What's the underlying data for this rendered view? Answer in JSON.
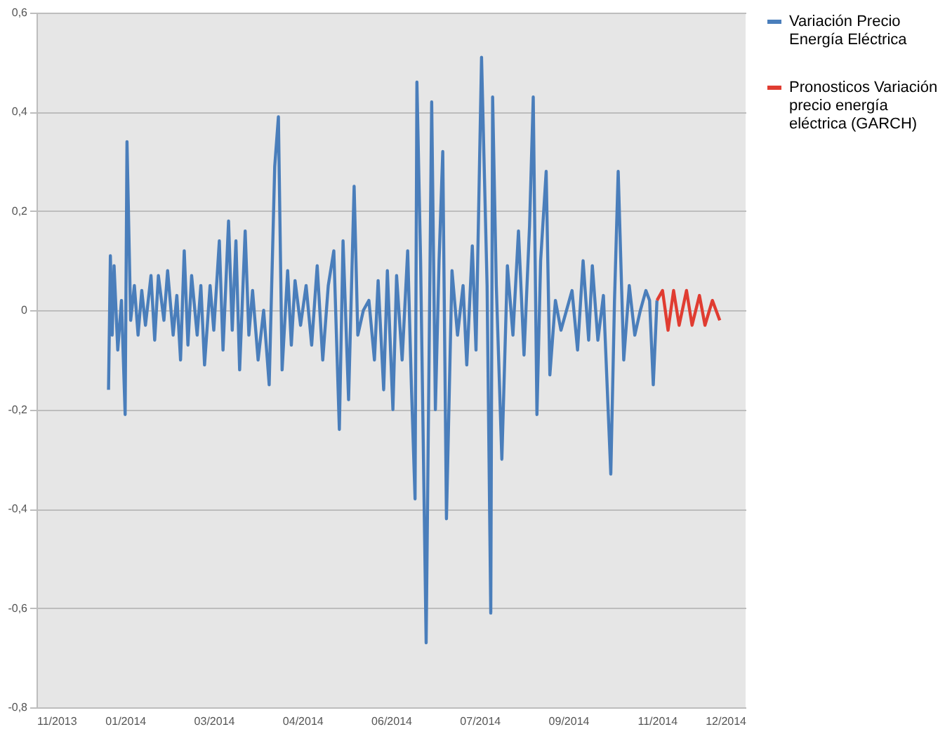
{
  "chart_data": {
    "type": "line",
    "xlim": [
      "2013-11-30",
      "2014-12-19"
    ],
    "xticks": [
      {
        "value": "2013-11-30",
        "label": "11/2013"
      },
      {
        "value": "2014-01-17",
        "label": "01/2014"
      },
      {
        "value": "2014-03-06",
        "label": "03/2014"
      },
      {
        "value": "2014-04-23",
        "label": "04/2014"
      },
      {
        "value": "2014-06-10",
        "label": "06/2014"
      },
      {
        "value": "2014-07-28",
        "label": "07/2014"
      },
      {
        "value": "2014-09-14",
        "label": "09/2014"
      },
      {
        "value": "2014-11-01",
        "label": "11/2014"
      },
      {
        "value": "2014-12-19",
        "label": "12/2014"
      }
    ],
    "ylim": [
      -0.8,
      0.6
    ],
    "yticks": [
      {
        "value": -0.8,
        "label": "-0,8"
      },
      {
        "value": -0.6,
        "label": "-0,6"
      },
      {
        "value": -0.4,
        "label": "-0,4"
      },
      {
        "value": -0.2,
        "label": "-0,2"
      },
      {
        "value": 0,
        "label": "0"
      },
      {
        "value": 0.2,
        "label": "0,2"
      },
      {
        "value": 0.4,
        "label": "0,4"
      },
      {
        "value": 0.6,
        "label": "0,6"
      }
    ],
    "grid": "y",
    "legend": "right",
    "line_style": "solid",
    "marker": "none",
    "series": [
      {
        "name": "Variación Precio Energía Eléctrica",
        "color": "#4a7ebb",
        "x": [
          "2014-01-08",
          "2014-01-09",
          "2014-01-10",
          "2014-01-11",
          "2014-01-13",
          "2014-01-15",
          "2014-01-17",
          "2014-01-18",
          "2014-01-20",
          "2014-01-22",
          "2014-01-24",
          "2014-01-26",
          "2014-01-28",
          "2014-01-31",
          "2014-02-02",
          "2014-02-04",
          "2014-02-07",
          "2014-02-09",
          "2014-02-12",
          "2014-02-14",
          "2014-02-16",
          "2014-02-18",
          "2014-02-20",
          "2014-02-22",
          "2014-02-25",
          "2014-02-27",
          "2014-03-01",
          "2014-03-04",
          "2014-03-06",
          "2014-03-09",
          "2014-03-11",
          "2014-03-14",
          "2014-03-16",
          "2014-03-18",
          "2014-03-20",
          "2014-03-23",
          "2014-03-25",
          "2014-03-27",
          "2014-03-30",
          "2014-04-02",
          "2014-04-05",
          "2014-04-08",
          "2014-04-10",
          "2014-04-12",
          "2014-04-15",
          "2014-04-17",
          "2014-04-19",
          "2014-04-22",
          "2014-04-25",
          "2014-04-28",
          "2014-05-01",
          "2014-05-04",
          "2014-05-07",
          "2014-05-10",
          "2014-05-13",
          "2014-05-15",
          "2014-05-18",
          "2014-05-21",
          "2014-05-23",
          "2014-05-26",
          "2014-05-29",
          "2014-06-01",
          "2014-06-03",
          "2014-06-06",
          "2014-06-08",
          "2014-06-11",
          "2014-06-13",
          "2014-06-16",
          "2014-06-19",
          "2014-06-21",
          "2014-06-23",
          "2014-06-24",
          "2014-06-26",
          "2014-06-29",
          "2014-07-02",
          "2014-07-04",
          "2014-07-06",
          "2014-07-08",
          "2014-07-10",
          "2014-07-13",
          "2014-07-16",
          "2014-07-19",
          "2014-07-21",
          "2014-07-24",
          "2014-07-26",
          "2014-07-29",
          "2014-08-01",
          "2014-08-03",
          "2014-08-04",
          "2014-08-06",
          "2014-08-09",
          "2014-08-12",
          "2014-08-15",
          "2014-08-18",
          "2014-08-21",
          "2014-08-24",
          "2014-08-26",
          "2014-08-28",
          "2014-08-30",
          "2014-09-02",
          "2014-09-04",
          "2014-09-07",
          "2014-09-10",
          "2014-09-13",
          "2014-09-16",
          "2014-09-19",
          "2014-09-22",
          "2014-09-25",
          "2014-09-27",
          "2014-09-30",
          "2014-10-03",
          "2014-10-07",
          "2014-10-09",
          "2014-10-11",
          "2014-10-14",
          "2014-10-17",
          "2014-10-20",
          "2014-10-23",
          "2014-10-26",
          "2014-10-28",
          "2014-10-30",
          "2014-11-01"
        ],
        "values": [
          -0.16,
          0.11,
          -0.05,
          0.09,
          -0.08,
          0.02,
          -0.21,
          0.34,
          -0.02,
          0.05,
          -0.05,
          0.04,
          -0.03,
          0.07,
          -0.06,
          0.07,
          -0.02,
          0.08,
          -0.05,
          0.03,
          -0.1,
          0.12,
          -0.07,
          0.07,
          -0.05,
          0.05,
          -0.11,
          0.05,
          -0.04,
          0.14,
          -0.08,
          0.18,
          -0.04,
          0.14,
          -0.12,
          0.16,
          -0.05,
          0.04,
          -0.1,
          0.0,
          -0.15,
          0.29,
          0.39,
          -0.12,
          0.08,
          -0.07,
          0.06,
          -0.03,
          0.05,
          -0.07,
          0.09,
          -0.1,
          0.05,
          0.12,
          -0.24,
          0.14,
          -0.18,
          0.25,
          -0.05,
          0.0,
          0.02,
          -0.1,
          0.06,
          -0.16,
          0.08,
          -0.2,
          0.07,
          -0.1,
          0.12,
          -0.15,
          -0.38,
          0.46,
          0.1,
          -0.67,
          0.42,
          -0.2,
          0.1,
          0.32,
          -0.42,
          0.08,
          -0.05,
          0.05,
          -0.11,
          0.13,
          -0.08,
          0.51,
          0.05,
          -0.61,
          0.43,
          0.05,
          -0.3,
          0.09,
          -0.05,
          0.16,
          -0.09,
          0.17,
          0.43,
          -0.21,
          0.1,
          0.28,
          -0.13,
          0.02,
          -0.04,
          0.0,
          0.04,
          -0.08,
          0.1,
          -0.06,
          0.09,
          -0.06,
          0.03,
          -0.33,
          0.02,
          0.28,
          -0.1,
          0.05,
          -0.05,
          0.0,
          0.04,
          0.02,
          -0.15,
          0.02
        ]
      },
      {
        "name": "Pronosticos Variación precio energía eléctrica (GARCH)",
        "color": "#e03c31",
        "x": [
          "2014-11-01",
          "2014-11-04",
          "2014-11-07",
          "2014-11-10",
          "2014-11-13",
          "2014-11-17",
          "2014-11-20",
          "2014-11-24",
          "2014-11-27",
          "2014-12-01",
          "2014-12-05"
        ],
        "values": [
          0.02,
          0.04,
          -0.04,
          0.04,
          -0.03,
          0.04,
          -0.03,
          0.03,
          -0.03,
          0.02,
          -0.02
        ]
      }
    ]
  }
}
